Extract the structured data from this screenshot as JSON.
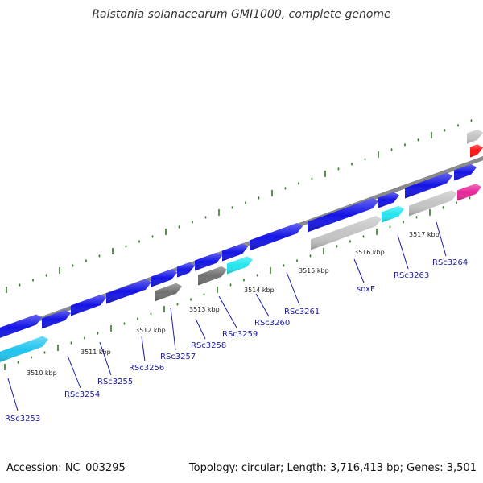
{
  "title": "Ralstonia solanacearum GMI1000, complete genome",
  "footer": {
    "accession": "Accession: NC_003295",
    "topology": "Topology: circular; Length: 3,716,413 bp; Genes: 3,501"
  },
  "colors": {
    "backbone": "#8a8a8a",
    "tick": "#2e7d1e",
    "label": "#1a1aa6",
    "blue": "#1414e6",
    "cyan": "#22e6f0",
    "light_blue": "#1ec4ef",
    "gray": "#c4c4c4",
    "dark_gray": "#707070",
    "red": "#ff1010",
    "magenta": "#e8269a"
  },
  "scale_labels": [
    "3510 kbp",
    "3511 kbp",
    "3512 kbp",
    "3513 kbp",
    "3514 kbp",
    "3515 kbp",
    "3516 kbp",
    "3517 kbp"
  ],
  "gene_labels": [
    "RSc3253",
    "RSc3254",
    "RSc3255",
    "RSc3256",
    "RSc3257",
    "RSc3258",
    "RSc3259",
    "RSc3260",
    "RSc3261",
    "soxF",
    "RSc3263",
    "RSc3264"
  ]
}
